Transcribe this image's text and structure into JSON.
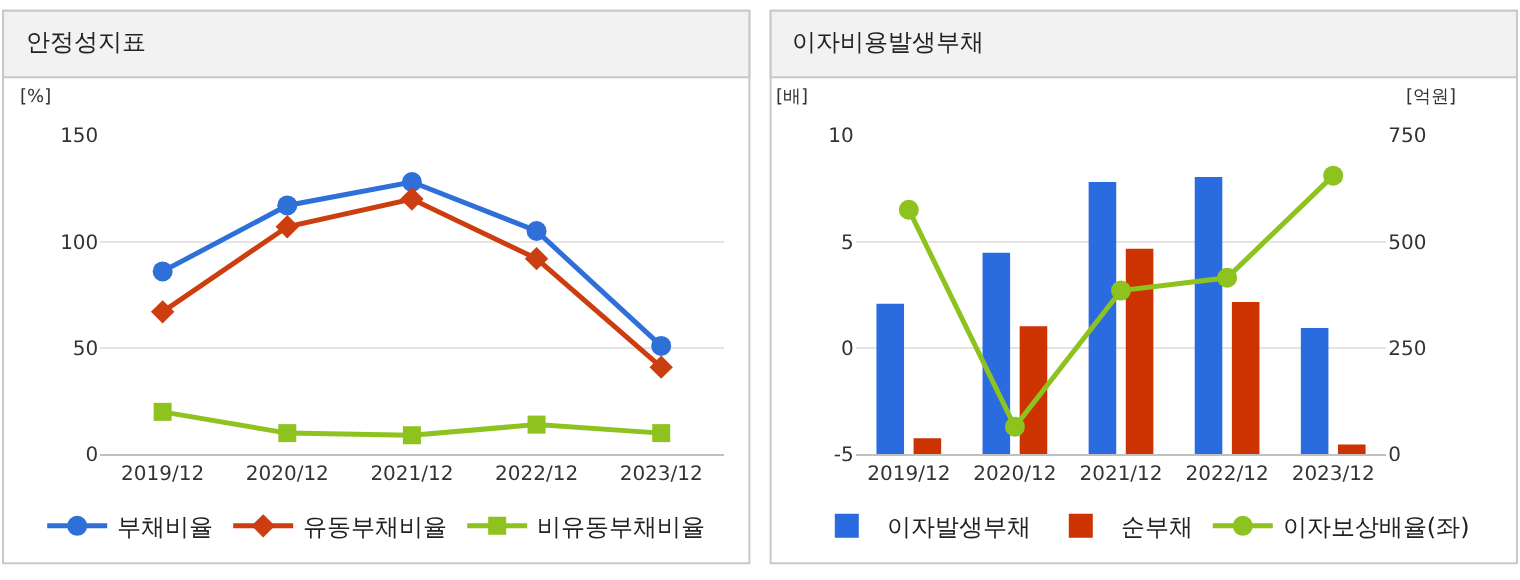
{
  "chart_data": [
    {
      "type": "line",
      "title": "안정성지표",
      "ylabel": "[%]",
      "categories": [
        "2019/12",
        "2020/12",
        "2021/12",
        "2022/12",
        "2023/12"
      ],
      "ylim": [
        0,
        150
      ],
      "yticks": [
        0,
        50,
        100,
        150
      ],
      "grid": "y",
      "legend": "bottom",
      "series": [
        {
          "name": "부채비율",
          "color": "#2f6fd8",
          "marker": "circle",
          "values": [
            86,
            117,
            128,
            105,
            51
          ]
        },
        {
          "name": "유동부채비율",
          "color": "#cc3d0f",
          "marker": "diamond",
          "values": [
            67,
            107,
            120,
            92,
            41
          ]
        },
        {
          "name": "비유동부채비율",
          "color": "#8dc21f",
          "marker": "square",
          "values": [
            20,
            10,
            9,
            14,
            10
          ]
        }
      ]
    },
    {
      "type": "bar",
      "title": "이자비용발생부채",
      "ylabel": "[배]",
      "y2label": "[억원]",
      "categories": [
        "2019/12",
        "2020/12",
        "2021/12",
        "2022/12",
        "2023/12"
      ],
      "ylim": [
        -5,
        10
      ],
      "yticks": [
        -5,
        0,
        5,
        10
      ],
      "y2lim": [
        0,
        750
      ],
      "y2ticks": [
        0,
        250,
        500,
        750
      ],
      "grid": "y",
      "legend": "bottom",
      "series": [
        {
          "name": "이자발생부채",
          "color": "#2a6be0",
          "axis": "y2",
          "values": [
            354,
            474,
            640,
            652,
            297
          ]
        },
        {
          "name": "순부채",
          "color": "#cc3300",
          "axis": "y2",
          "values": [
            38,
            301,
            483,
            358,
            23
          ]
        },
        {
          "name": "이자보상배율(좌)",
          "type": "line",
          "color": "#8dc21f",
          "marker": "circle",
          "values": [
            6.5,
            -3.7,
            2.7,
            3.3,
            8.1
          ]
        }
      ]
    }
  ]
}
